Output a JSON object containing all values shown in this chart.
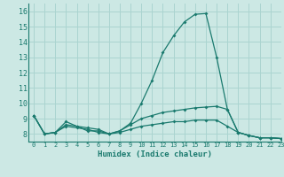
{
  "title": "",
  "xlabel": "Humidex (Indice chaleur)",
  "background_color": "#cce8e4",
  "grid_color": "#aad4d0",
  "line_color": "#1a7a6e",
  "xlim": [
    -0.5,
    23
  ],
  "ylim": [
    7.5,
    16.5
  ],
  "xticks": [
    0,
    1,
    2,
    3,
    4,
    5,
    6,
    7,
    8,
    9,
    10,
    11,
    12,
    13,
    14,
    15,
    16,
    17,
    18,
    19,
    20,
    21,
    22,
    23
  ],
  "yticks": [
    8,
    9,
    10,
    11,
    12,
    13,
    14,
    15,
    16
  ],
  "series": [
    [
      9.2,
      8.0,
      8.1,
      8.8,
      8.5,
      8.4,
      8.3,
      8.0,
      8.2,
      8.7,
      10.0,
      11.5,
      13.3,
      14.4,
      15.3,
      15.8,
      15.85,
      13.0,
      9.6,
      8.1,
      7.9,
      7.75,
      7.75,
      7.7
    ],
    [
      9.2,
      8.0,
      8.1,
      8.6,
      8.5,
      8.2,
      8.2,
      8.0,
      8.2,
      8.6,
      9.0,
      9.2,
      9.4,
      9.5,
      9.6,
      9.7,
      9.75,
      9.8,
      9.6,
      8.1,
      7.9,
      7.75,
      7.75,
      7.7
    ],
    [
      9.2,
      8.0,
      8.1,
      8.5,
      8.4,
      8.3,
      8.1,
      8.0,
      8.1,
      8.3,
      8.5,
      8.6,
      8.7,
      8.8,
      8.8,
      8.9,
      8.9,
      8.9,
      8.5,
      8.1,
      7.9,
      7.75,
      7.75,
      7.7
    ]
  ]
}
